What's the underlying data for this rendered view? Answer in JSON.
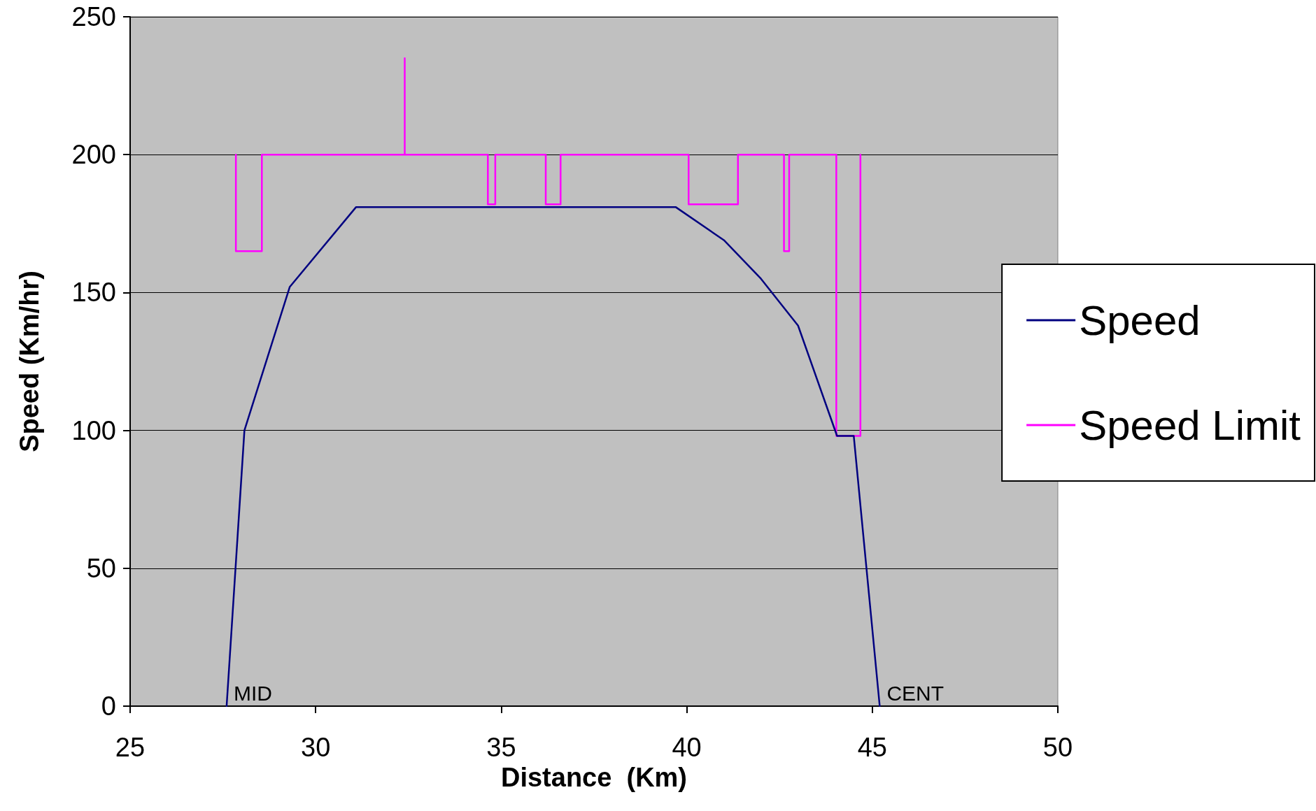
{
  "chart_data": {
    "type": "line",
    "xlabel": "Distance  (Km)",
    "ylabel": "Speed (Km/hr)",
    "xlim": [
      25,
      50
    ],
    "xticks": [
      25,
      30,
      35,
      40,
      45,
      50
    ],
    "ylim": [
      0,
      250
    ],
    "yticks": [
      0,
      50,
      100,
      150,
      200,
      250
    ],
    "grid": "y",
    "legend": "right",
    "marker": "none",
    "line_style": "solid",
    "series": [
      {
        "name": "Speed",
        "color": "#000080",
        "x": [
          27.6,
          28.08,
          29.3,
          31.09,
          39.7,
          41.0,
          42.0,
          43.0,
          44.05,
          44.5,
          45.2
        ],
        "values": [
          0,
          100,
          152,
          181,
          181,
          169,
          155,
          138,
          98,
          98,
          0
        ]
      },
      {
        "name": "Speed Limit",
        "color": "#ff00ff",
        "x": [
          27.85,
          27.85,
          28.55,
          28.55,
          32.4,
          32.4,
          32.4,
          34.64,
          34.64,
          34.84,
          34.84,
          36.2,
          36.2,
          36.6,
          36.6,
          40.05,
          40.05,
          41.38,
          41.38,
          42.62,
          42.62,
          42.76,
          42.76,
          44.03,
          44.03,
          44.68,
          44.68
        ],
        "values": [
          200,
          165,
          165,
          200,
          200,
          235,
          200,
          200,
          182,
          182,
          200,
          200,
          182,
          182,
          200,
          200,
          182,
          182,
          200,
          200,
          165,
          165,
          200,
          200,
          98,
          98,
          200
        ]
      }
    ],
    "annotations": [
      {
        "text": "MID",
        "x": 27.6,
        "y": 0
      },
      {
        "text": "CENT",
        "x": 45.2,
        "y": 0
      }
    ]
  }
}
